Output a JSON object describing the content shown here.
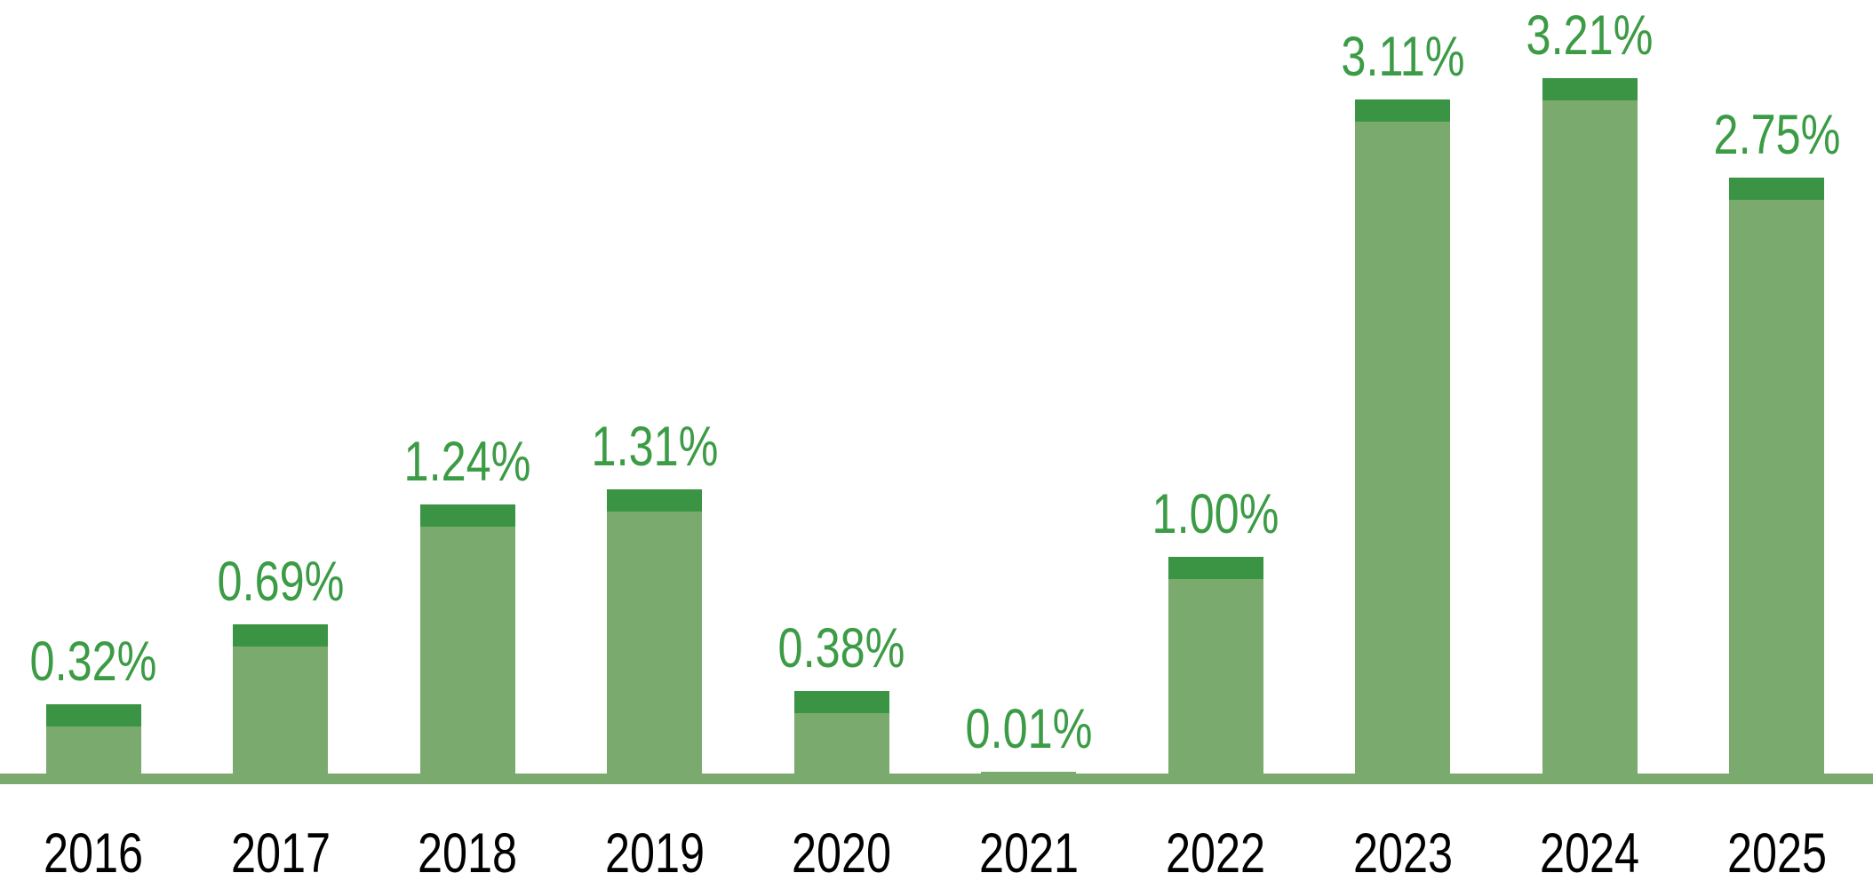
{
  "chart_data": {
    "type": "bar",
    "title": "",
    "xlabel": "",
    "ylabel": "",
    "unit": "%",
    "categories": [
      "2016",
      "2017",
      "2018",
      "2019",
      "2020",
      "2021",
      "2022",
      "2023",
      "2024",
      "2025"
    ],
    "values": [
      0.32,
      0.69,
      1.24,
      1.31,
      0.38,
      0.01,
      1.0,
      3.11,
      3.21,
      2.75
    ],
    "value_labels": [
      "0.32%",
      "0.69%",
      "1.24%",
      "1.31%",
      "0.38%",
      "0.01%",
      "1.00%",
      "3.11%",
      "3.21%",
      "2.75%"
    ],
    "ylim": [
      0,
      3.5
    ],
    "grid": false,
    "legend": null,
    "style_notes": "each bar has a constant-height darker green cap on top; value labels above bars; baseline line spans full width",
    "colors": {
      "bar_body": "#7AAA6E",
      "bar_cap": "#3A9444",
      "value_label": "#3C9B45",
      "axis_line": "#7AAA6E",
      "category_label": "#000000"
    }
  }
}
